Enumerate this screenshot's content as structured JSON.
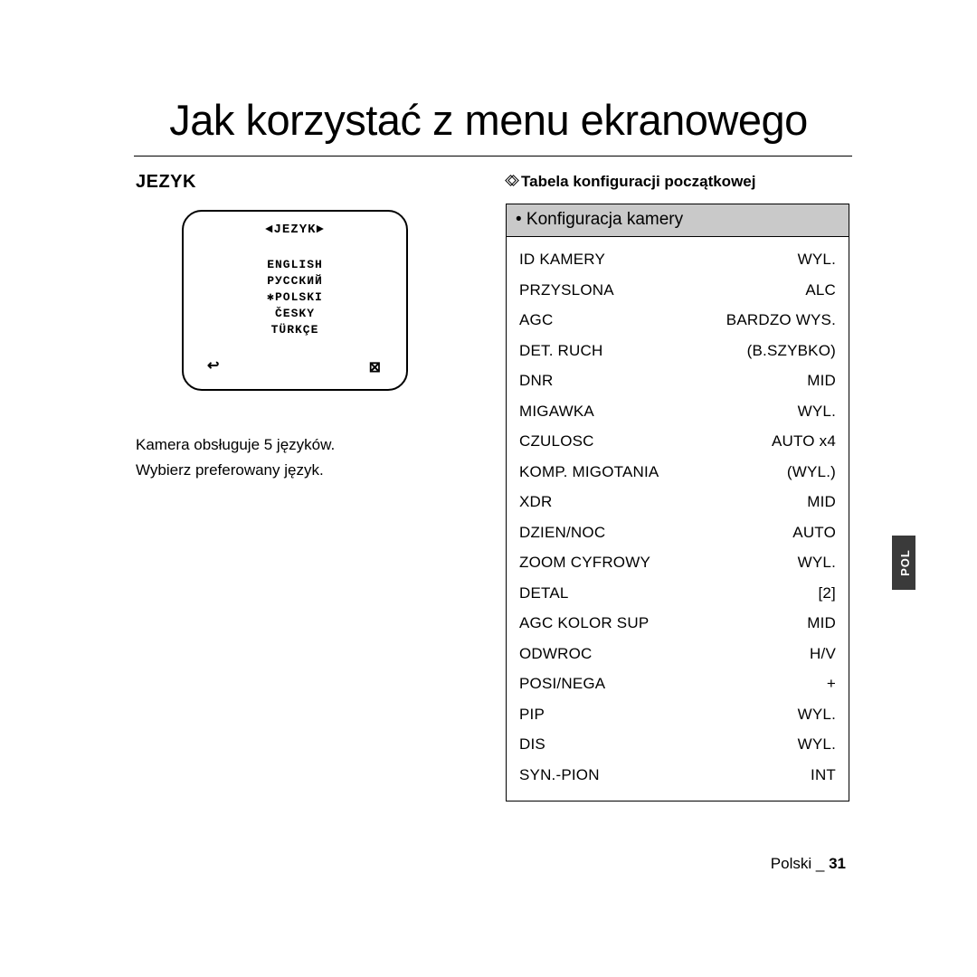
{
  "page_title": "Jak korzystać z menu ekranowego",
  "section_heading": "JEZYK",
  "osd": {
    "title": "◄JEZYK►",
    "languages": [
      "ENGLISH",
      "РУССКИЙ",
      "✱POLSKI",
      "ČESKY",
      "TÜRKÇE"
    ],
    "back_glyph": "↩",
    "close_glyph": "⊠"
  },
  "body_lines": [
    "Kamera obsługuje 5 języków.",
    "Wybierz preferowany język."
  ],
  "right": {
    "subtitle": "Tabela konfiguracji początkowej",
    "table_title": "• Konfiguracja kamery",
    "rows": [
      {
        "k": "ID KAMERY",
        "v": "WYL."
      },
      {
        "k": "PRZYSLONA",
        "v": "ALC"
      },
      {
        "k": "AGC",
        "v": "BARDZO WYS."
      },
      {
        "k": "DET. RUCH",
        "v": "(B.SZYBKO)"
      },
      {
        "k": "DNR",
        "v": "MID"
      },
      {
        "k": "MIGAWKA",
        "v": "WYL."
      },
      {
        "k": "CZULOSC",
        "v": "AUTO x4"
      },
      {
        "k": "KOMP. MIGOTANIA",
        "v": "(WYL.)"
      },
      {
        "k": "XDR",
        "v": "MID"
      },
      {
        "k": "DZIEN/NOC",
        "v": "AUTO"
      },
      {
        "k": "ZOOM CYFROWY",
        "v": "WYL."
      },
      {
        "k": "DETAL",
        "v": "[2]"
      },
      {
        "k": "AGC KOLOR SUP",
        "v": "MID"
      },
      {
        "k": "ODWROC",
        "v": "H/V"
      },
      {
        "k": "POSI/NEGA",
        "v": "+"
      },
      {
        "k": "PIP",
        "v": "WYL."
      },
      {
        "k": "DIS",
        "v": "WYL."
      },
      {
        "k": "SYN.-PION",
        "v": "INT"
      }
    ]
  },
  "side_tab": "POL",
  "footer_lang": "Polski",
  "footer_sep": "_",
  "footer_page": "31",
  "style": {
    "colors": {
      "text": "#000000",
      "background": "#ffffff",
      "table_header_bg": "#c9c9c9",
      "side_tab_bg": "#3a3a3a",
      "side_tab_text": "#ffffff"
    },
    "title_fontsize": 47,
    "heading_fontsize": 20,
    "body_fontsize": 17,
    "table_title_fontsize": 19,
    "row_fontsize": 17,
    "row_line_height": 33.5,
    "osd_font": "Courier New",
    "osd_fontsize": 13
  }
}
